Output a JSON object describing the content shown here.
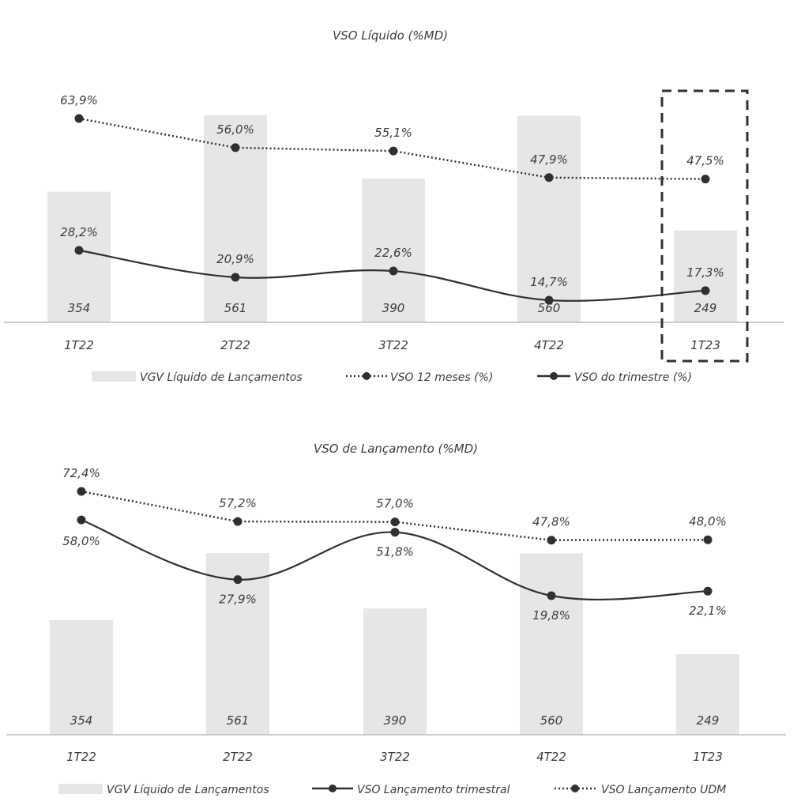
{
  "chart_data": [
    {
      "type": "bar",
      "title": "VSO Líquido (%MD)",
      "categories": [
        "1T22",
        "2T22",
        "3T22",
        "4T22",
        "1T23"
      ],
      "bar_series": {
        "name": "VGV Líquido de Lançamentos",
        "values": [
          354,
          561,
          390,
          560,
          249
        ],
        "labels": [
          "354",
          "561",
          "390",
          "560",
          "249"
        ]
      },
      "line_series": [
        {
          "name": "VSO 12 meses (%)",
          "style": "dotted",
          "values": [
            63.9,
            56.0,
            55.1,
            47.9,
            47.5
          ],
          "labels": [
            "63,9%",
            "56,0%",
            "55,1%",
            "47,9%",
            "47,5%"
          ]
        },
        {
          "name": "VSO do trimestre (%)",
          "style": "solid",
          "values": [
            28.2,
            20.9,
            22.6,
            14.7,
            17.3
          ],
          "labels": [
            "28,2%",
            "20,9%",
            "22,6%",
            "14,7%",
            "17,3%"
          ]
        }
      ],
      "highlight_category": "1T23",
      "legend": [
        "VGV Líquido de Lançamentos",
        "VSO 12 meses (%)",
        "VSO do trimestre (%)"
      ],
      "legend_position": "bottom",
      "grid": false
    },
    {
      "type": "bar",
      "title": "VSO de Lançamento (%MD)",
      "categories": [
        "1T22",
        "2T22",
        "3T22",
        "4T22",
        "1T23"
      ],
      "bar_series": {
        "name": "VGV Líquido de Lançamentos",
        "values": [
          354,
          561,
          390,
          560,
          249
        ],
        "labels": [
          "354",
          "561",
          "390",
          "560",
          "249"
        ]
      },
      "line_series": [
        {
          "name": "VSO Lançamento trimestral",
          "style": "solid",
          "values": [
            58.0,
            27.9,
            51.8,
            19.8,
            22.1
          ],
          "labels": [
            "58,0%",
            "27,9%",
            "51,8%",
            "19,8%",
            "22,1%"
          ]
        },
        {
          "name": "VSO Lançamento UDM",
          "style": "dotted",
          "values": [
            72.4,
            57.2,
            57.0,
            47.8,
            48.0
          ],
          "labels": [
            "72,4%",
            "57,2%",
            "57,0%",
            "47,8%",
            "48,0%"
          ]
        }
      ],
      "legend": [
        "VGV Líquido de Lançamentos",
        "VSO Lançamento trimestral",
        "VSO Lançamento UDM"
      ],
      "legend_position": "bottom",
      "grid": false
    }
  ],
  "colors": {
    "bar": "#e6e7e4",
    "line": "#2e3033",
    "axis": "#bdbdbd",
    "text": "#3a3d40"
  }
}
